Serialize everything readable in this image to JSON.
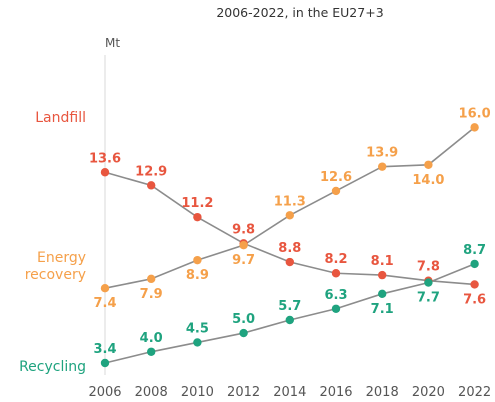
{
  "chart_data": {
    "type": "line",
    "subtitle": "2006-2022, in the EU27+3",
    "unit": "Mt",
    "categories": [
      "2006",
      "2008",
      "2010",
      "2012",
      "2014",
      "2016",
      "2018",
      "2020",
      "2022"
    ],
    "series": [
      {
        "name": "Landfill",
        "color": "#e8563f",
        "values": [
          13.6,
          12.9,
          11.2,
          9.8,
          8.8,
          8.2,
          8.1,
          7.8,
          7.6
        ],
        "labels": [
          "13.6",
          "12.9",
          "11.2",
          "9.8",
          "8.8",
          "8.2",
          "8.1",
          "7.8",
          "7.6"
        ]
      },
      {
        "name": "Energy\nrecovery",
        "color": "#f5a04a",
        "values": [
          7.4,
          7.9,
          8.9,
          9.7,
          11.3,
          12.6,
          13.9,
          14.0,
          16.0
        ],
        "labels": [
          "7.4",
          "7.9",
          "8.9",
          "9.7",
          "11.3",
          "12.6",
          "13.9",
          "14.0",
          "16.0"
        ]
      },
      {
        "name": "Recycling",
        "color": "#1fa37f",
        "values": [
          3.4,
          4.0,
          4.5,
          5.0,
          5.7,
          6.3,
          7.1,
          7.7,
          8.7
        ],
        "labels": [
          "3.4",
          "4.0",
          "4.5",
          "5.0",
          "5.7",
          "6.3",
          "7.1",
          "7.7",
          "8.7"
        ]
      }
    ],
    "line_color": "#8c8c8c"
  }
}
